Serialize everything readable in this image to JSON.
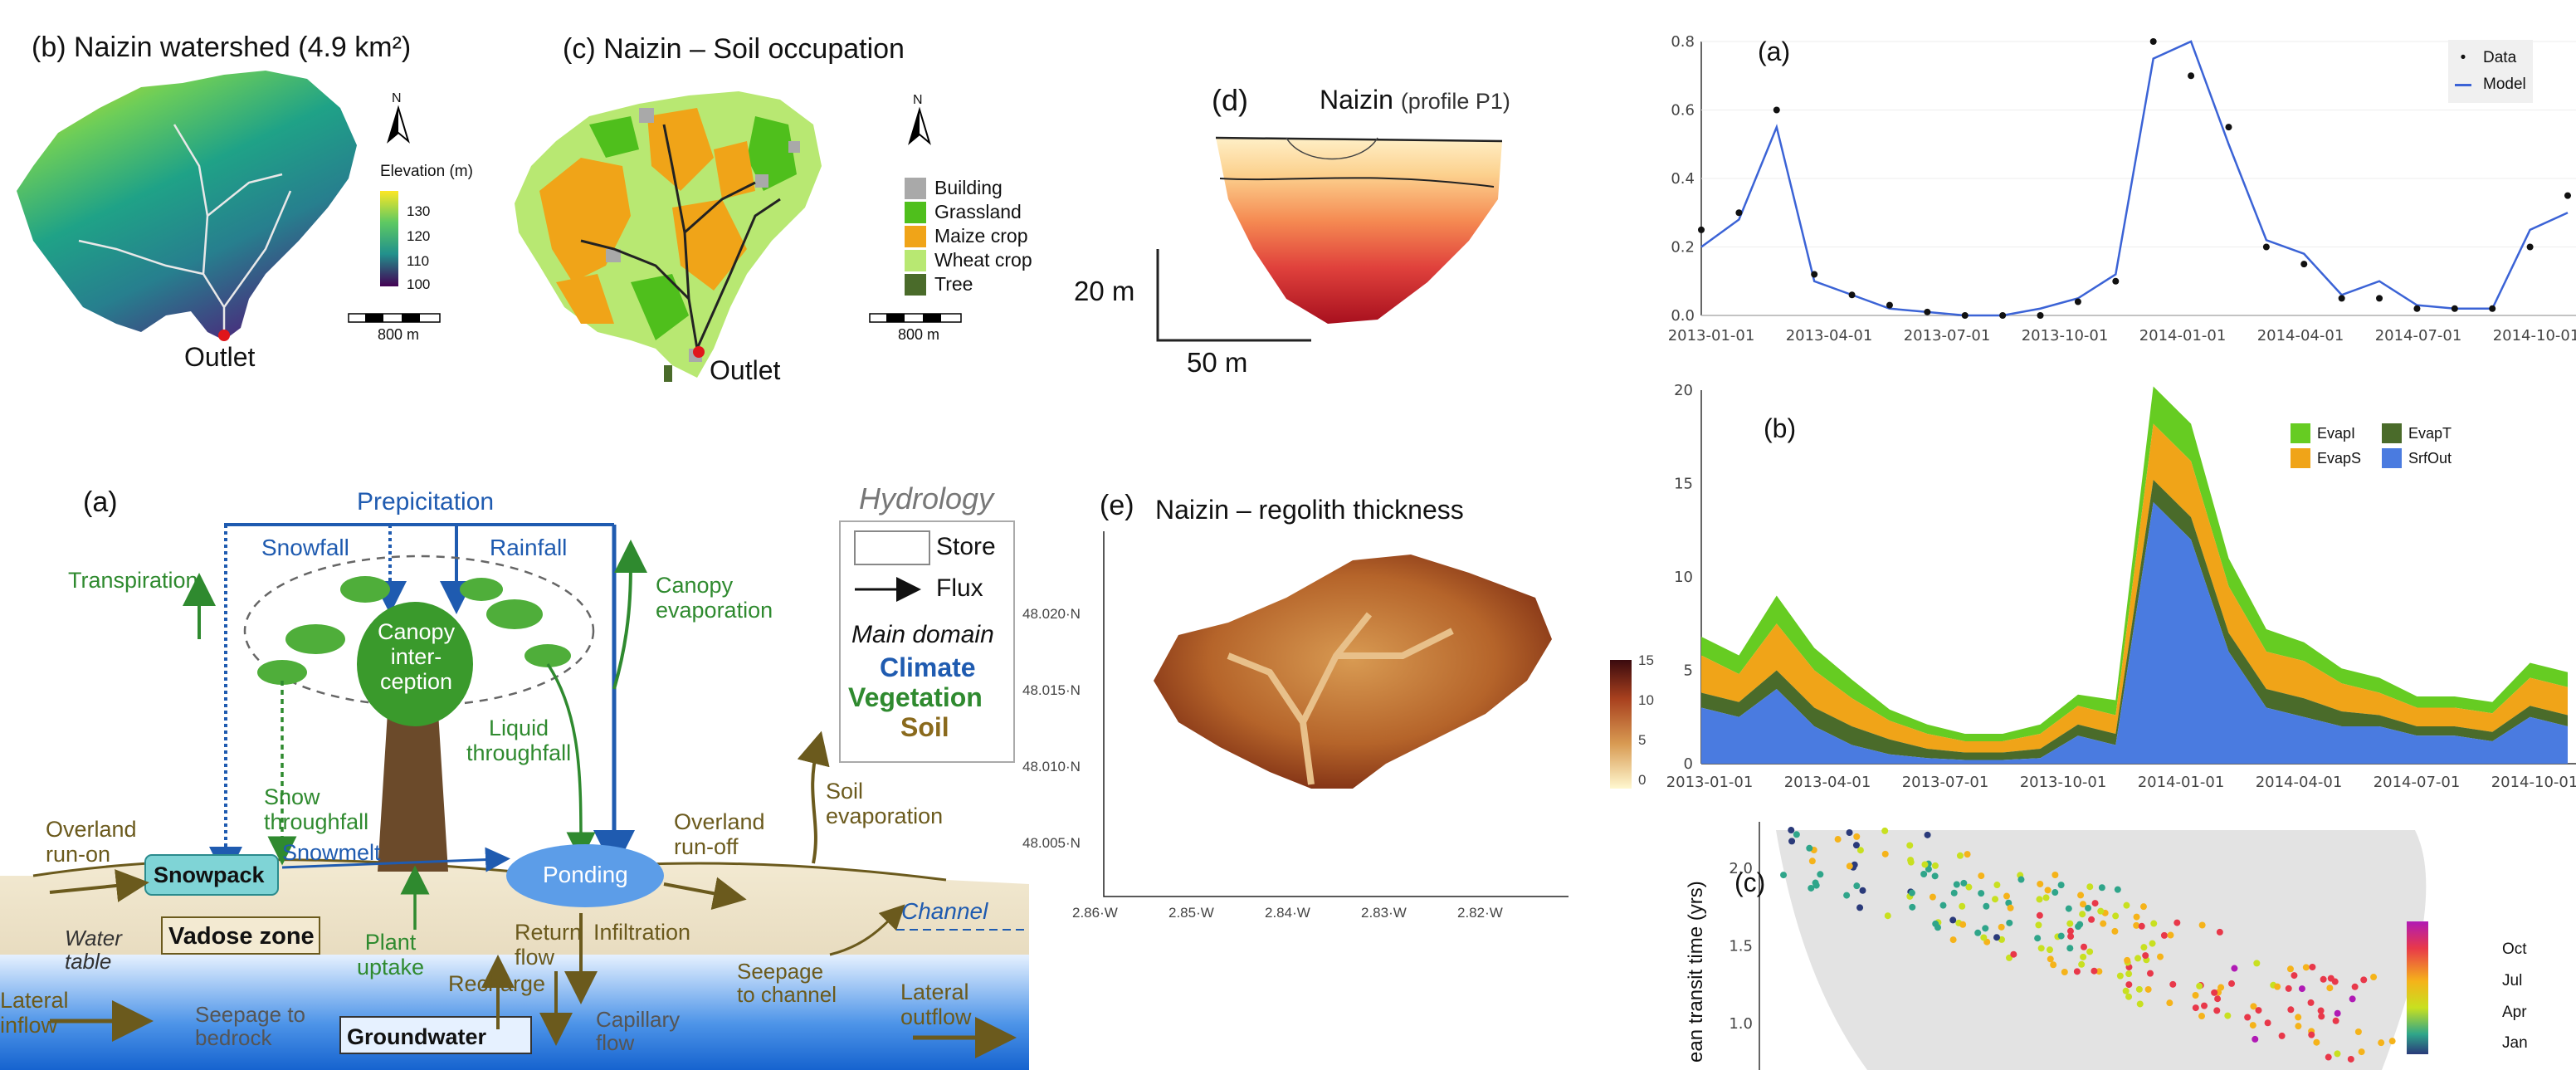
{
  "panels": {
    "b_watershed": {
      "title": "(b) Naizin watershed (4.9 km²)",
      "legend_title": "Elevation (m)",
      "legend_ticks": [
        "130",
        "120",
        "110",
        "100"
      ],
      "scalebar": "800 m",
      "north": "N",
      "outlet": "Outlet"
    },
    "c_soil": {
      "title": "(c) Naizin – Soil occupation",
      "legend": [
        {
          "label": "Building",
          "color": "#a9a9a9"
        },
        {
          "label": "Grassland",
          "color": "#4fbf1c"
        },
        {
          "label": "Maize crop",
          "color": "#f0a418"
        },
        {
          "label": "Wheat crop",
          "color": "#b8e872"
        },
        {
          "label": "Tree",
          "color": "#4a6b2a"
        }
      ],
      "scalebar": "800 m",
      "north": "N",
      "outlet": "Outlet"
    },
    "d_profile": {
      "label": "(d)",
      "title": "Naizin",
      "subtitle": "(profile P1)",
      "vscale": "20 m",
      "hscale": "50 m"
    },
    "e_regolith": {
      "label": "(e)",
      "title": "Naizin  – regolith thickness",
      "y_ticks": [
        "48.020·N",
        "48.015·N",
        "48.010·N",
        "48.005·N"
      ],
      "x_ticks": [
        "2.86·W",
        "2.85·W",
        "2.84·W",
        "2.83·W",
        "2.82·W"
      ],
      "colorbar_ticks": [
        "15",
        "10",
        "5",
        "0"
      ]
    },
    "a_hydrology": {
      "label": "(a)",
      "labels": {
        "precipitation": "Prepicitation",
        "snowfall": "Snowfall",
        "rainfall": "Rainfall",
        "transpiration": "Transpiration",
        "canopy_evap": "Canopy\nevaporation",
        "canopy_int": "Canopy\ninter-\nception",
        "snow_through": "Snow\nthroughfall",
        "liquid_through": "Liquid\nthroughfall",
        "overland_runon": "Overland\nrun-on",
        "overland_runoff": "Overland\nrun-off",
        "soil_evap": "Soil\nevaporation",
        "snowpack": "Snowpack",
        "snowmelt": "Snowmelt",
        "ponding": "Ponding",
        "channel": "Channel",
        "water_table": "Water\ntable",
        "vadose": "Vadose zone",
        "plant_uptake": "Plant\nuptake",
        "return_flow": "Return\nflow",
        "infiltration": "Infiltration",
        "seepage_channel": "Seepage\nto channel",
        "recharge": "Recharge",
        "lateral_inflow": "Lateral\ninflow",
        "seepage_bedrock": "Seepage to\nbedrock",
        "groundwater": "Groundwater",
        "capillary": "Capillary\nflow",
        "lateral_outflow": "Lateral\noutflow"
      },
      "legend": {
        "title": "Hydrology",
        "store": "Store",
        "flux": "Flux",
        "main_domain": "Main domain",
        "climate": "Climate",
        "vegetation": "Vegetation",
        "soil": "Soil"
      }
    },
    "right_a": {
      "label": "(a)",
      "legend": [
        {
          "label": "Data"
        },
        {
          "label": "Model"
        }
      ],
      "y_ticks": [
        "0.8",
        "0.6",
        "0.4",
        "0.2",
        "0.0"
      ],
      "x_ticks": [
        "2013-01-01",
        "2013-04-01",
        "2013-07-01",
        "2013-10-01",
        "2014-01-01",
        "2014-04-01",
        "2014-07-01",
        "2014-10-01"
      ]
    },
    "right_b": {
      "label": "(b)",
      "legend": [
        {
          "label": "EvapI",
          "color": "#66cc22"
        },
        {
          "label": "EvapT",
          "color": "#4a6b2a"
        },
        {
          "label": "EvapS",
          "color": "#f0a418"
        },
        {
          "label": "SrfOut",
          "color": "#4a7be0"
        }
      ],
      "y_ticks": [
        "20",
        "15",
        "10",
        "5",
        "0"
      ],
      "x_ticks": [
        "2013-01-01",
        "2013-04-01",
        "2013-07-01",
        "2013-10-01",
        "2014-01-01",
        "2014-04-01",
        "2014-07-01",
        "2014-10-01"
      ]
    },
    "right_c": {
      "label": "(c)",
      "ylabel": "ean transit time (yrs)",
      "y_ticks": [
        "2.0",
        "1.5",
        "1.0"
      ],
      "colorbar_ticks": [
        "Oct",
        "Jul",
        "Apr",
        "Jan"
      ]
    }
  },
  "chart_data": [
    {
      "type": "line",
      "panel": "right_a",
      "xlabel": "",
      "ylabel": "",
      "ylim": [
        0,
        0.8
      ],
      "x": [
        "2013-01-01",
        "2013-02-01",
        "2013-03-01",
        "2013-04-01",
        "2013-05-01",
        "2013-06-01",
        "2013-07-01",
        "2013-08-01",
        "2013-09-01",
        "2013-10-01",
        "2013-11-01",
        "2013-12-01",
        "2014-01-01",
        "2014-02-01",
        "2014-03-01",
        "2014-04-01",
        "2014-05-01",
        "2014-06-01",
        "2014-07-01",
        "2014-08-01",
        "2014-09-01",
        "2014-10-01",
        "2014-11-01",
        "2014-12-01"
      ],
      "series": [
        {
          "name": "Data",
          "values": [
            0.25,
            0.3,
            0.6,
            0.12,
            0.06,
            0.03,
            0.01,
            0.0,
            0.0,
            0.0,
            0.04,
            0.1,
            0.8,
            0.7,
            0.55,
            0.2,
            0.15,
            0.05,
            0.05,
            0.02,
            0.02,
            0.02,
            0.2,
            0.35
          ]
        },
        {
          "name": "Model",
          "values": [
            0.2,
            0.28,
            0.55,
            0.1,
            0.06,
            0.02,
            0.01,
            0.0,
            0.0,
            0.02,
            0.05,
            0.12,
            0.75,
            0.8,
            0.5,
            0.22,
            0.18,
            0.06,
            0.1,
            0.03,
            0.02,
            0.02,
            0.25,
            0.3
          ]
        }
      ]
    },
    {
      "type": "area",
      "panel": "right_b",
      "xlabel": "",
      "ylabel": "",
      "ylim": [
        0,
        20
      ],
      "x": [
        "2013-01-01",
        "2013-02-01",
        "2013-03-01",
        "2013-04-01",
        "2013-05-01",
        "2013-06-01",
        "2013-07-01",
        "2013-08-01",
        "2013-09-01",
        "2013-10-01",
        "2013-11-01",
        "2013-12-01",
        "2014-01-01",
        "2014-02-01",
        "2014-03-01",
        "2014-04-01",
        "2014-05-01",
        "2014-06-01",
        "2014-07-01",
        "2014-08-01",
        "2014-09-01",
        "2014-10-01",
        "2014-11-01",
        "2014-12-01"
      ],
      "series": [
        {
          "name": "SrfOut",
          "values": [
            3,
            2.5,
            4,
            2,
            1,
            0.5,
            0.3,
            0.2,
            0.2,
            0.3,
            1.5,
            1,
            14,
            12,
            6,
            3,
            2.5,
            2,
            2,
            1.5,
            1.5,
            1.2,
            2.5,
            2
          ]
        },
        {
          "name": "EvapT",
          "values": [
            0.8,
            0.8,
            1,
            1,
            1,
            0.8,
            0.5,
            0.4,
            0.4,
            0.5,
            0.6,
            0.6,
            1.2,
            1.2,
            1,
            1,
            1,
            0.8,
            0.6,
            0.5,
            0.5,
            0.5,
            0.6,
            0.6
          ]
        },
        {
          "name": "EvapS",
          "values": [
            2,
            1.5,
            2.5,
            2,
            1.5,
            1,
            0.8,
            0.6,
            0.6,
            0.8,
            1,
            1,
            3,
            3,
            2.5,
            2,
            2,
            1.5,
            1.2,
            1,
            1,
            1,
            1.5,
            1.5
          ]
        },
        {
          "name": "EvapI",
          "values": [
            1,
            1,
            1.5,
            1.2,
            1,
            0.6,
            0.5,
            0.4,
            0.4,
            0.5,
            0.6,
            0.8,
            2,
            2,
            1.5,
            1.2,
            1,
            0.8,
            0.8,
            0.6,
            0.6,
            0.6,
            0.8,
            0.8
          ]
        }
      ]
    },
    {
      "type": "scatter",
      "panel": "right_c",
      "ylabel": "ean transit time (yrs)",
      "ylim": [
        0.7,
        2.3
      ],
      "colorbar": [
        "Jan",
        "Apr",
        "Jul",
        "Oct"
      ]
    }
  ]
}
